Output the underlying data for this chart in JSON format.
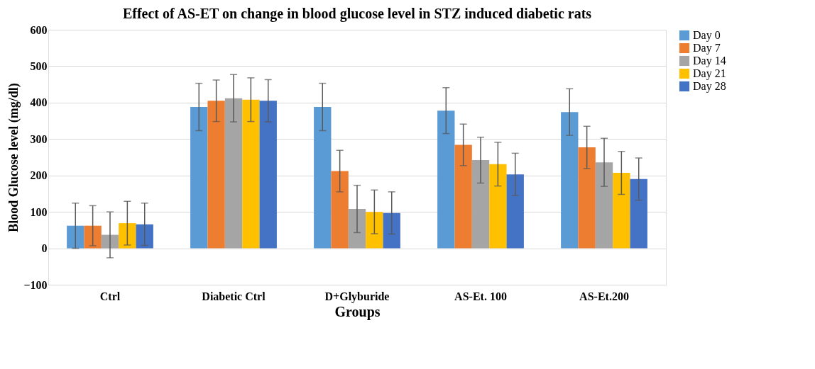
{
  "chart_data": {
    "type": "bar",
    "title": "Effect of AS-ET on change in blood glucose level in STZ induced diabetic rats",
    "xlabel": "Groups",
    "ylabel": "Blood Glucose level (mg/dl)",
    "categories": [
      "Ctrl",
      "Diabetic Ctrl",
      "D+Glyburide",
      "AS-Et. 100",
      "AS-Et.200"
    ],
    "series": [
      {
        "name": "Day 0",
        "color": "#5b9bd5",
        "values": [
          62,
          388,
          388,
          378,
          374
        ],
        "errors": [
          62,
          65,
          65,
          63,
          64
        ]
      },
      {
        "name": "Day 7",
        "color": "#ed7d31",
        "values": [
          62,
          405,
          212,
          284,
          277
        ],
        "errors": [
          55,
          57,
          57,
          57,
          58
        ]
      },
      {
        "name": "Day 14",
        "color": "#a5a5a5",
        "values": [
          37,
          412,
          108,
          242,
          236
        ],
        "errors": [
          63,
          65,
          65,
          63,
          66
        ]
      },
      {
        "name": "Day 21",
        "color": "#ffc000",
        "values": [
          69,
          408,
          100,
          231,
          207
        ],
        "errors": [
          60,
          60,
          60,
          60,
          59
        ]
      },
      {
        "name": "Day 28",
        "color": "#4472c4",
        "values": [
          66,
          405,
          97,
          203,
          190
        ],
        "errors": [
          58,
          58,
          58,
          58,
          58
        ]
      }
    ],
    "ylim": [
      -100,
      600
    ],
    "yticks": [
      -100,
      0,
      100,
      200,
      300,
      400,
      500,
      600
    ],
    "grid": "y",
    "legend": "right"
  }
}
